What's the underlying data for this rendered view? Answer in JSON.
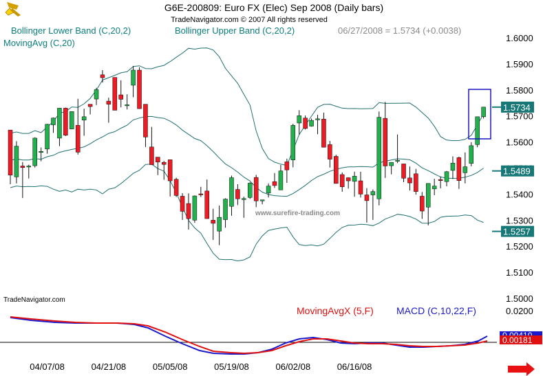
{
  "header": {
    "title": "G6E-200809:  Euro FX (Elec) Sep 2008  (Daily bars)",
    "copyright": "TradeNavigator.com © 2007 All rights reserved",
    "legend_lower": "Bollinger Lower Band (C,20,2)",
    "legend_upper": "Bollinger Upper Band (C,20,2)",
    "legend_last": "06/27/2008 = 1.5734 (+0.0038)",
    "legend_ma": "MovingAvg (C,20)",
    "watermark": "www.surefire-trading.com",
    "brand": "TradeNavigator.com",
    "macd_label_ma": "MovingAvgX (5,F)",
    "macd_label_macd": "MACD (C,10,22,F)"
  },
  "colors": {
    "up": "#22b14c",
    "down": "#ed1c24",
    "band": "#1f6f6f",
    "legend_teal": "#0c7d7d",
    "macd_blue": "#1a1acc",
    "macd_red": "#e01010",
    "badge_bg": "#187878",
    "arrow": "#e81010"
  },
  "chart_data": {
    "type": "candlestick",
    "y_ticks": [
      "1.6000",
      "1.5900",
      "1.5800",
      "1.5700",
      "1.5600",
      "1.5500",
      "1.5400",
      "1.5300",
      "1.5200",
      "1.5100",
      "1.5000"
    ],
    "ylim": [
      1.5,
      1.6
    ],
    "x_ticks": [
      {
        "label": "04/07/08",
        "index": 6
      },
      {
        "label": "04/21/08",
        "index": 16
      },
      {
        "label": "05/05/08",
        "index": 26
      },
      {
        "label": "05/19/08",
        "index": 36
      },
      {
        "label": "06/02/08",
        "index": 46
      },
      {
        "label": "06/16/08",
        "index": 56
      }
    ],
    "price_badges": [
      {
        "label": "1.5734",
        "value": 1.5734
      },
      {
        "label": "1.5489",
        "value": 1.5489
      },
      {
        "label": "1.5257",
        "value": 1.5257
      }
    ],
    "candles": [
      {
        "o": 1.5646,
        "h": 1.5646,
        "l": 1.5438,
        "c": 1.5473
      },
      {
        "o": 1.5466,
        "h": 1.5603,
        "l": 1.5441,
        "c": 1.5584
      },
      {
        "o": 1.5508,
        "h": 1.5523,
        "l": 1.5385,
        "c": 1.5502
      },
      {
        "o": 1.5508,
        "h": 1.5513,
        "l": 1.546,
        "c": 1.5508
      },
      {
        "o": 1.5509,
        "h": 1.5618,
        "l": 1.5502,
        "c": 1.5615
      },
      {
        "o": 1.5564,
        "h": 1.5579,
        "l": 1.5526,
        "c": 1.5564
      },
      {
        "o": 1.5573,
        "h": 1.567,
        "l": 1.5555,
        "c": 1.5668
      },
      {
        "o": 1.5666,
        "h": 1.5694,
        "l": 1.5635,
        "c": 1.5692
      },
      {
        "o": 1.5615,
        "h": 1.573,
        "l": 1.5584,
        "c": 1.573
      },
      {
        "o": 1.573,
        "h": 1.5732,
        "l": 1.5623,
        "c": 1.5626
      },
      {
        "o": 1.565,
        "h": 1.5717,
        "l": 1.565,
        "c": 1.5717
      },
      {
        "o": 1.5664,
        "h": 1.5766,
        "l": 1.5552,
        "c": 1.5561
      },
      {
        "o": 1.5684,
        "h": 1.5728,
        "l": 1.5624,
        "c": 1.5697
      },
      {
        "o": 1.5745,
        "h": 1.5745,
        "l": 1.5706,
        "c": 1.5736
      },
      {
        "o": 1.5765,
        "h": 1.5808,
        "l": 1.5742,
        "c": 1.5801
      },
      {
        "o": 1.5858,
        "h": 1.5876,
        "l": 1.5828,
        "c": 1.5847
      },
      {
        "o": 1.5757,
        "h": 1.577,
        "l": 1.5674,
        "c": 1.5745
      },
      {
        "o": 1.5848,
        "h": 1.5848,
        "l": 1.5722,
        "c": 1.5722
      },
      {
        "o": 1.5781,
        "h": 1.5837,
        "l": 1.5733,
        "c": 1.5764
      },
      {
        "o": 1.5743,
        "h": 1.5783,
        "l": 1.5725,
        "c": 1.5743
      },
      {
        "o": 1.5818,
        "h": 1.5892,
        "l": 1.5772,
        "c": 1.5876
      },
      {
        "o": 1.5876,
        "h": 1.5887,
        "l": 1.5727,
        "c": 1.5728
      },
      {
        "o": 1.5745,
        "h": 1.5745,
        "l": 1.5581,
        "c": 1.5619
      },
      {
        "o": 1.5581,
        "h": 1.5658,
        "l": 1.5513,
        "c": 1.5513
      },
      {
        "o": 1.5542,
        "h": 1.5542,
        "l": 1.5473,
        "c": 1.5523
      },
      {
        "o": 1.5522,
        "h": 1.5527,
        "l": 1.5455,
        "c": 1.5514
      },
      {
        "o": 1.5532,
        "h": 1.5532,
        "l": 1.5391,
        "c": 1.5451
      },
      {
        "o": 1.5457,
        "h": 1.5463,
        "l": 1.5389,
        "c": 1.5395
      },
      {
        "o": 1.5392,
        "h": 1.5404,
        "l": 1.5301,
        "c": 1.5334
      },
      {
        "o": 1.5364,
        "h": 1.5403,
        "l": 1.5264,
        "c": 1.5306
      },
      {
        "o": 1.53,
        "h": 1.5395,
        "l": 1.529,
        "c": 1.5393
      },
      {
        "o": 1.5401,
        "h": 1.5428,
        "l": 1.5389,
        "c": 1.5398
      },
      {
        "o": 1.5412,
        "h": 1.5456,
        "l": 1.5306,
        "c": 1.5306
      },
      {
        "o": 1.53,
        "h": 1.5344,
        "l": 1.5224,
        "c": 1.5288
      },
      {
        "o": 1.5258,
        "h": 1.5356,
        "l": 1.5204,
        "c": 1.5311
      },
      {
        "o": 1.5302,
        "h": 1.5384,
        "l": 1.5271,
        "c": 1.5381
      },
      {
        "o": 1.5353,
        "h": 1.5471,
        "l": 1.5317,
        "c": 1.5463
      },
      {
        "o": 1.5418,
        "h": 1.5438,
        "l": 1.5358,
        "c": 1.5382
      },
      {
        "o": 1.5383,
        "h": 1.539,
        "l": 1.5309,
        "c": 1.5383
      },
      {
        "o": 1.5387,
        "h": 1.5446,
        "l": 1.5382,
        "c": 1.5442
      },
      {
        "o": 1.5464,
        "h": 1.5474,
        "l": 1.535,
        "c": 1.5374
      },
      {
        "o": 1.5378,
        "h": 1.5378,
        "l": 1.5361,
        "c": 1.5378
      },
      {
        "o": 1.5404,
        "h": 1.5441,
        "l": 1.5387,
        "c": 1.5431
      },
      {
        "o": 1.5448,
        "h": 1.5481,
        "l": 1.5424,
        "c": 1.5433
      },
      {
        "o": 1.5416,
        "h": 1.5512,
        "l": 1.5416,
        "c": 1.5489
      },
      {
        "o": 1.5524,
        "h": 1.5536,
        "l": 1.5443,
        "c": 1.5493
      },
      {
        "o": 1.5531,
        "h": 1.567,
        "l": 1.5503,
        "c": 1.5664
      },
      {
        "o": 1.5673,
        "h": 1.5722,
        "l": 1.5629,
        "c": 1.5701
      },
      {
        "o": 1.5692,
        "h": 1.5702,
        "l": 1.5648,
        "c": 1.5652
      },
      {
        "o": 1.5661,
        "h": 1.569,
        "l": 1.5659,
        "c": 1.5683
      },
      {
        "o": 1.5685,
        "h": 1.5704,
        "l": 1.563,
        "c": 1.5689
      },
      {
        "o": 1.5688,
        "h": 1.5713,
        "l": 1.5579,
        "c": 1.558
      },
      {
        "o": 1.559,
        "h": 1.5604,
        "l": 1.5502,
        "c": 1.5534
      },
      {
        "o": 1.5545,
        "h": 1.5551,
        "l": 1.544,
        "c": 1.5441
      },
      {
        "o": 1.5475,
        "h": 1.5483,
        "l": 1.5409,
        "c": 1.5428
      },
      {
        "o": 1.5463,
        "h": 1.5464,
        "l": 1.5421,
        "c": 1.5451
      },
      {
        "o": 1.5449,
        "h": 1.5486,
        "l": 1.539,
        "c": 1.5469
      },
      {
        "o": 1.5451,
        "h": 1.5486,
        "l": 1.5387,
        "c": 1.54
      },
      {
        "o": 1.5397,
        "h": 1.5423,
        "l": 1.5291,
        "c": 1.5375
      },
      {
        "o": 1.5397,
        "h": 1.5418,
        "l": 1.5301,
        "c": 1.541
      },
      {
        "o": 1.5382,
        "h": 1.5717,
        "l": 1.5357,
        "c": 1.5695
      },
      {
        "o": 1.5691,
        "h": 1.5754,
        "l": 1.5462,
        "c": 1.5508
      },
      {
        "o": 1.5509,
        "h": 1.5522,
        "l": 1.5476,
        "c": 1.5522
      },
      {
        "o": 1.5528,
        "h": 1.5629,
        "l": 1.5519,
        "c": 1.553
      },
      {
        "o": 1.5516,
        "h": 1.5517,
        "l": 1.5446,
        "c": 1.5461
      },
      {
        "o": 1.5462,
        "h": 1.5506,
        "l": 1.5414,
        "c": 1.5443
      },
      {
        "o": 1.5478,
        "h": 1.5497,
        "l": 1.5398,
        "c": 1.541
      },
      {
        "o": 1.5392,
        "h": 1.5408,
        "l": 1.5305,
        "c": 1.5335
      },
      {
        "o": 1.535,
        "h": 1.5441,
        "l": 1.528,
        "c": 1.5441
      },
      {
        "o": 1.542,
        "h": 1.5459,
        "l": 1.5396,
        "c": 1.5431
      },
      {
        "o": 1.5456,
        "h": 1.5468,
        "l": 1.5422,
        "c": 1.5455
      },
      {
        "o": 1.5448,
        "h": 1.5489,
        "l": 1.543,
        "c": 1.5486
      },
      {
        "o": 1.5491,
        "h": 1.5545,
        "l": 1.5458,
        "c": 1.5519
      },
      {
        "o": 1.554,
        "h": 1.5544,
        "l": 1.542,
        "c": 1.5452
      },
      {
        "o": 1.5482,
        "h": 1.556,
        "l": 1.5441,
        "c": 1.5505
      },
      {
        "o": 1.5518,
        "h": 1.5599,
        "l": 1.5507,
        "c": 1.5586
      },
      {
        "o": 1.559,
        "h": 1.5697,
        "l": 1.558,
        "c": 1.5697
      },
      {
        "o": 1.5697,
        "h": 1.5735,
        "l": 1.569,
        "c": 1.5734
      }
    ],
    "upper_band": [],
    "lower_band": [],
    "moving_avg": []
  }
}
